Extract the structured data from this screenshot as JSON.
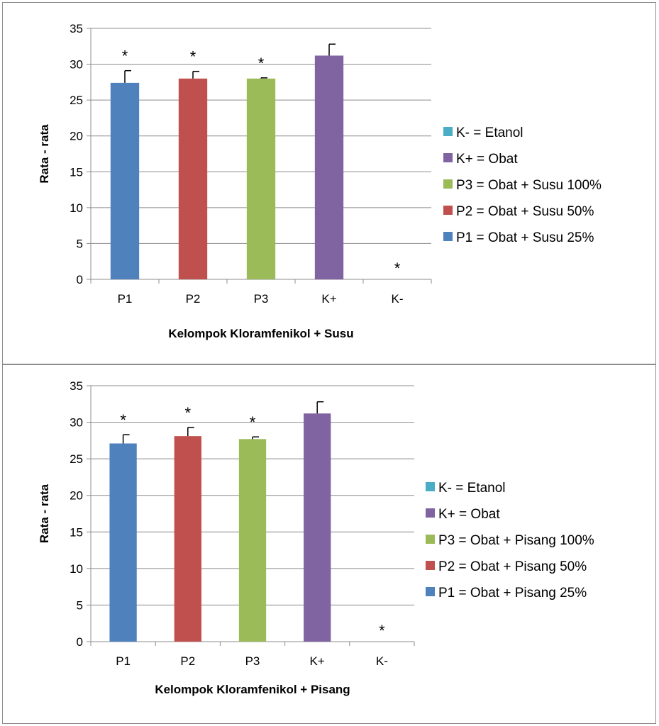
{
  "chart_data": [
    {
      "type": "bar",
      "xlabel": "Kelompok Kloramfenikol + Susu",
      "ylabel": "Rata - rata",
      "ylim": [
        0,
        35
      ],
      "yticks": [
        "0",
        "5",
        "10",
        "15",
        "20",
        "25",
        "30",
        "35"
      ],
      "grid": true,
      "legend_position": "right",
      "categories": [
        "P1",
        "P2",
        "P3",
        "K+",
        "K-"
      ],
      "values": [
        27.4,
        28.0,
        28.0,
        31.2,
        0
      ],
      "errors": [
        1.7,
        1.0,
        0.1,
        1.6,
        0
      ],
      "colors": [
        "#4f81bd",
        "#c0504d",
        "#9bbb59",
        "#8064a2",
        "#4bacc6"
      ],
      "significance": [
        "*",
        "*",
        "*",
        "",
        "*"
      ],
      "legend": [
        {
          "label": "K- = Etanol",
          "color": "#4bacc6"
        },
        {
          "label": "K+ = Obat",
          "color": "#8064a2"
        },
        {
          "label": "P3 = Obat + Susu 100%",
          "color": "#9bbb59"
        },
        {
          "label": "P2 = Obat + Susu 50%",
          "color": "#c0504d"
        },
        {
          "label": "P1 = Obat + Susu 25%",
          "color": "#4f81bd"
        }
      ]
    },
    {
      "type": "bar",
      "xlabel": "Kelompok Kloramfenikol + Pisang",
      "ylabel": "Rata - rata",
      "ylim": [
        0,
        35
      ],
      "yticks": [
        "0",
        "5",
        "10",
        "15",
        "20",
        "25",
        "30",
        "35"
      ],
      "grid": true,
      "legend_position": "right",
      "categories": [
        "P1",
        "P2",
        "P3",
        "K+",
        "K-"
      ],
      "values": [
        27.1,
        28.1,
        27.7,
        31.2,
        0
      ],
      "errors": [
        1.2,
        1.2,
        0.3,
        1.6,
        0
      ],
      "colors": [
        "#4f81bd",
        "#c0504d",
        "#9bbb59",
        "#8064a2",
        "#4bacc6"
      ],
      "significance": [
        "*",
        "*",
        "*",
        "",
        "*"
      ],
      "legend": [
        {
          "label": "K- = Etanol",
          "color": "#4bacc6"
        },
        {
          "label": "K+ = Obat",
          "color": "#8064a2"
        },
        {
          "label": "P3 = Obat + Pisang 100%",
          "color": "#9bbb59"
        },
        {
          "label": "P2 = Obat + Pisang 50%",
          "color": "#c0504d"
        },
        {
          "label": "P1 = Obat + Pisang 25%",
          "color": "#4f81bd"
        }
      ]
    }
  ]
}
